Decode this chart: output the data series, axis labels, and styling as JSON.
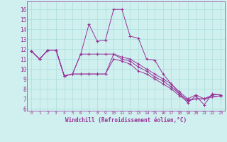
{
  "xlabel": "Windchill (Refroidissement éolien,°C)",
  "bg_color": "#cff0ee",
  "line_color": "#993399",
  "grid_color": "#aadddd",
  "x_ticks": [
    0,
    1,
    2,
    3,
    4,
    5,
    6,
    7,
    8,
    9,
    10,
    11,
    12,
    13,
    14,
    15,
    16,
    17,
    18,
    19,
    20,
    21,
    22,
    23
  ],
  "y_ticks": [
    6,
    7,
    8,
    9,
    10,
    11,
    12,
    13,
    14,
    15,
    16
  ],
  "ylim": [
    5.8,
    16.8
  ],
  "xlim": [
    -0.5,
    23.5
  ],
  "lines": [
    [
      11.8,
      11.0,
      11.9,
      11.9,
      9.3,
      9.5,
      11.5,
      14.5,
      12.8,
      12.9,
      16.0,
      16.0,
      13.3,
      13.1,
      11.0,
      10.9,
      9.5,
      8.5,
      7.5,
      6.6,
      7.3,
      6.4,
      7.5,
      7.4
    ],
    [
      11.8,
      11.0,
      11.9,
      11.9,
      9.3,
      9.5,
      11.5,
      11.5,
      11.5,
      11.5,
      11.5,
      11.2,
      11.0,
      10.5,
      10.0,
      9.5,
      9.0,
      8.5,
      7.7,
      7.0,
      7.4,
      7.0,
      7.4,
      7.4
    ],
    [
      11.8,
      11.0,
      11.9,
      11.9,
      9.3,
      9.5,
      9.5,
      9.5,
      9.5,
      9.5,
      11.5,
      11.0,
      10.8,
      10.2,
      9.8,
      9.2,
      8.8,
      8.2,
      7.5,
      6.9,
      7.0,
      7.0,
      7.2,
      7.3
    ],
    [
      11.8,
      11.0,
      11.9,
      11.9,
      9.3,
      9.5,
      9.5,
      9.5,
      9.5,
      9.5,
      11.0,
      10.8,
      10.5,
      9.8,
      9.5,
      9.0,
      8.5,
      8.0,
      7.3,
      6.8,
      7.0,
      7.0,
      7.2,
      7.3
    ]
  ]
}
